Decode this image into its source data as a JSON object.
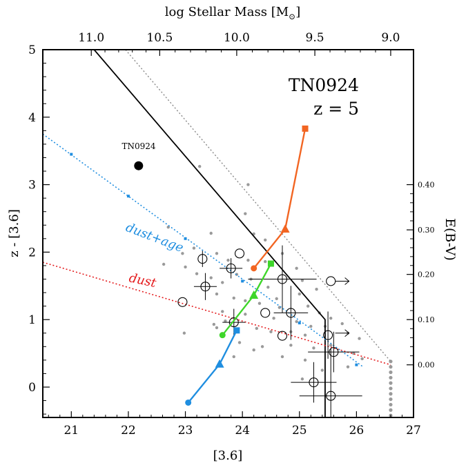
{
  "chart_data": {
    "type": "scatter",
    "title": "TN0924",
    "subtitle": "z = 5",
    "xlabel": "[3.6]",
    "ylabel": "z - [3.6]",
    "top_xlabel": "log Stellar Mass [M",
    "top_xlabel_sub": "⊙",
    "top_xlabel_close": "]",
    "right_ylabel": "E(B-V)",
    "xlim": [
      20.5,
      27.0
    ],
    "ylim": [
      -0.45,
      5.0
    ],
    "x_ticks": [
      "21",
      "22",
      "23",
      "24",
      "25",
      "26",
      "27"
    ],
    "y_ticks": [
      "0",
      "1",
      "2",
      "3",
      "4",
      "5"
    ],
    "top_ticks": [
      {
        "label": "11.0",
        "x": 21.35
      },
      {
        "label": "10.5",
        "x": 22.55
      },
      {
        "label": "10.0",
        "x": 23.9
      },
      {
        "label": "9.5",
        "x": 25.27
      },
      {
        "label": "9.0",
        "x": 26.6
      }
    ],
    "right_ticks": [
      {
        "label": "0.40",
        "y": 3.0
      },
      {
        "label": "0.30",
        "y": 2.33
      },
      {
        "label": "0.20",
        "y": 1.67
      },
      {
        "label": "0.10",
        "y": 1.0
      },
      {
        "label": "0.00",
        "y": 0.33
      }
    ],
    "highlight": {
      "label": "TN0924",
      "x": 22.18,
      "y": 3.28
    },
    "selection_cut": [
      [
        21.4,
        5.0
      ],
      [
        25.45,
        1.0
      ],
      [
        25.45,
        -0.45
      ]
    ],
    "reference_line": [
      [
        21.95,
        5.0
      ],
      [
        26.6,
        0.38
      ]
    ],
    "dust_vector": {
      "label": "dust",
      "color": "#e41a1c",
      "points": [
        [
          20.5,
          1.85
        ],
        [
          26.6,
          0.33
        ]
      ]
    },
    "dust_age_vector": {
      "label": "dust+age",
      "color": "#1f8ee0",
      "points": [
        [
          20.5,
          3.75
        ],
        [
          26.1,
          0.31
        ]
      ],
      "markers": [
        [
          21.0,
          3.45
        ],
        [
          22.0,
          2.83
        ],
        [
          23.0,
          2.2
        ],
        [
          24.0,
          1.57
        ],
        [
          25.0,
          0.95
        ],
        [
          26.0,
          0.33
        ]
      ]
    },
    "tracks": [
      {
        "color": "#f26522",
        "points": [
          [
            24.2,
            1.76
          ],
          [
            24.75,
            2.34
          ],
          [
            25.1,
            3.83
          ]
        ]
      },
      {
        "color": "#3ed62a",
        "points": [
          [
            23.65,
            0.77
          ],
          [
            24.2,
            1.36
          ],
          [
            24.5,
            1.83
          ]
        ]
      },
      {
        "color": "#1f8ee0",
        "points": [
          [
            23.05,
            -0.23
          ],
          [
            23.6,
            0.34
          ],
          [
            23.9,
            0.84
          ]
        ]
      }
    ],
    "open_circles": [
      [
        23.3,
        1.9
      ],
      [
        23.95,
        1.98
      ],
      [
        23.8,
        1.76
      ],
      [
        23.35,
        1.49
      ],
      [
        22.95,
        1.26
      ],
      [
        23.85,
        0.96
      ],
      [
        24.4,
        1.1
      ],
      [
        24.7,
        1.6
      ],
      [
        24.85,
        1.1
      ],
      [
        24.7,
        0.76
      ],
      [
        25.55,
        1.57
      ],
      [
        25.5,
        0.77
      ],
      [
        25.6,
        0.52
      ],
      [
        25.25,
        0.07
      ],
      [
        25.55,
        -0.13
      ]
    ],
    "error_bars": [
      {
        "x": 23.3,
        "y": 1.9,
        "dx": 0.0,
        "dy": 0.12
      },
      {
        "x": 23.8,
        "y": 1.76,
        "dx": 0.2,
        "dy": 0.15
      },
      {
        "x": 23.35,
        "y": 1.49,
        "dx": 0.2,
        "dy": 0.2
      },
      {
        "x": 23.85,
        "y": 0.96,
        "dx": 0.2,
        "dy": 0.2
      },
      {
        "x": 24.7,
        "y": 1.6,
        "dx": 0.6,
        "dy": 0.5
      },
      {
        "x": 24.85,
        "y": 1.1,
        "dx": 0.3,
        "dy": 0.4
      },
      {
        "x": 25.6,
        "y": 0.52,
        "dx": 0.45,
        "dy": 0.3
      },
      {
        "x": 25.25,
        "y": 0.07,
        "dx": 0.4,
        "dy": 0.3
      },
      {
        "x": 25.55,
        "y": -0.13,
        "dx": 0.55,
        "dy": 0.7
      },
      {
        "x": 25.5,
        "y": 0.77,
        "dx": 0.0,
        "dy": 0.35
      }
    ],
    "limit_arrows": [
      [
        25.7,
        1.57
      ],
      [
        25.7,
        0.8
      ]
    ],
    "gray_points": [
      [
        23.25,
        3.27
      ],
      [
        24.1,
        3.0
      ],
      [
        22.7,
        2.37
      ],
      [
        22.95,
        1.98
      ],
      [
        23.15,
        2.06
      ],
      [
        22.62,
        1.82
      ],
      [
        23.45,
        2.28
      ],
      [
        24.05,
        2.57
      ],
      [
        24.2,
        2.27
      ],
      [
        24.4,
        2.18
      ],
      [
        23.55,
        1.98
      ],
      [
        23.75,
        1.88
      ],
      [
        24.1,
        1.88
      ],
      [
        24.4,
        1.86
      ],
      [
        24.7,
        1.98
      ],
      [
        24.95,
        1.76
      ],
      [
        23.0,
        1.78
      ],
      [
        23.2,
        1.68
      ],
      [
        23.45,
        1.62
      ],
      [
        23.65,
        1.55
      ],
      [
        23.9,
        1.67
      ],
      [
        24.15,
        1.6
      ],
      [
        24.45,
        1.48
      ],
      [
        25.05,
        1.58
      ],
      [
        25.3,
        1.45
      ],
      [
        25.0,
        1.38
      ],
      [
        23.55,
        1.38
      ],
      [
        23.85,
        1.32
      ],
      [
        24.05,
        1.28
      ],
      [
        24.3,
        1.24
      ],
      [
        24.6,
        1.31
      ],
      [
        25.15,
        1.2
      ],
      [
        25.35,
        1.1
      ],
      [
        25.55,
        1.02
      ],
      [
        23.65,
        1.12
      ],
      [
        24.05,
        1.08
      ],
      [
        24.55,
        1.02
      ],
      [
        24.95,
        0.97
      ],
      [
        25.2,
        0.9
      ],
      [
        25.45,
        0.9
      ],
      [
        25.75,
        0.94
      ],
      [
        23.55,
        0.88
      ],
      [
        24.25,
        0.87
      ],
      [
        24.5,
        0.82
      ],
      [
        24.85,
        0.82
      ],
      [
        25.1,
        0.77
      ],
      [
        25.85,
        0.8
      ],
      [
        26.05,
        0.72
      ],
      [
        23.95,
        0.66
      ],
      [
        24.35,
        0.6
      ],
      [
        24.85,
        0.62
      ],
      [
        25.25,
        0.58
      ],
      [
        25.55,
        0.62
      ],
      [
        25.95,
        0.5
      ],
      [
        24.7,
        0.45
      ],
      [
        25.1,
        0.4
      ],
      [
        25.85,
        0.3
      ],
      [
        26.1,
        0.42
      ],
      [
        25.05,
        0.12
      ],
      [
        25.4,
        0.25
      ],
      [
        23.85,
        0.45
      ],
      [
        23.5,
        0.93
      ],
      [
        22.98,
        0.8
      ],
      [
        24.2,
        0.55
      ],
      [
        23.7,
        0.98
      ],
      [
        24.65,
        1.18
      ]
    ],
    "limit_column": {
      "x": 26.6,
      "y_values": [
        0.38,
        0.3,
        0.22,
        0.14,
        0.06,
        -0.02,
        -0.1,
        -0.18,
        -0.26,
        -0.34,
        -0.42
      ]
    }
  }
}
